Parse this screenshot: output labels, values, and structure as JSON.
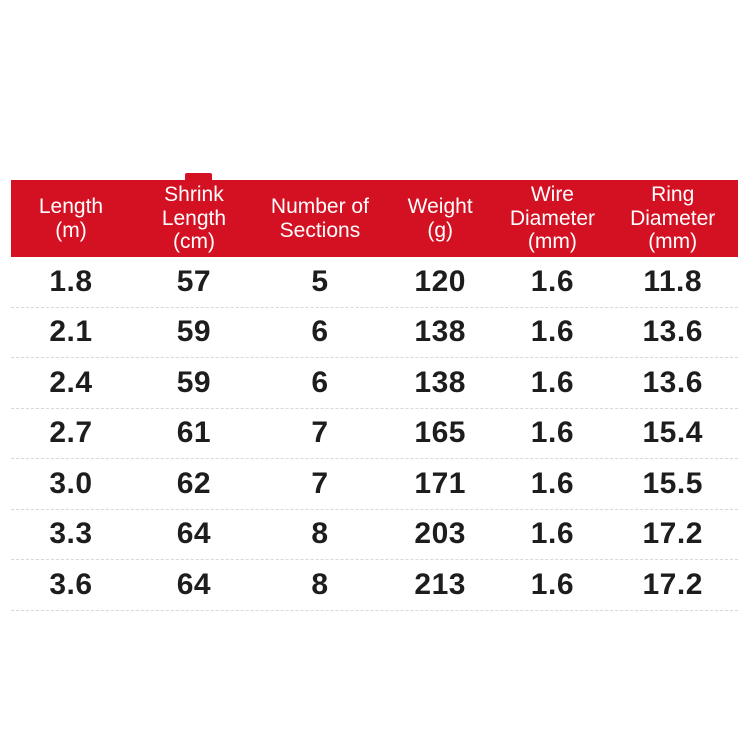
{
  "colors": {
    "header_background": "#d41122",
    "header_text": "#ffffff",
    "row_text": "#1d1d1d",
    "separator": "#d8d8d8",
    "page_background": "#ffffff"
  },
  "table": {
    "columns": [
      {
        "label": "Length\n(m)"
      },
      {
        "label": "Shrink\nLength\n(cm)"
      },
      {
        "label": "Number of\nSections"
      },
      {
        "label": "Weight\n(g)"
      },
      {
        "label": "Wire\nDiameter\n(mm)"
      },
      {
        "label": "Ring\nDiameter\n(mm)"
      }
    ],
    "rows": [
      {
        "cells": [
          "1.8",
          "57",
          "5",
          "120",
          "1.6",
          "11.8"
        ]
      },
      {
        "cells": [
          "2.1",
          "59",
          "6",
          "138",
          "1.6",
          "13.6"
        ]
      },
      {
        "cells": [
          "2.4",
          "59",
          "6",
          "138",
          "1.6",
          "13.6"
        ]
      },
      {
        "cells": [
          "2.7",
          "61",
          "7",
          "165",
          "1.6",
          "15.4"
        ]
      },
      {
        "cells": [
          "3.0",
          "62",
          "7",
          "171",
          "1.6",
          "15.5"
        ]
      },
      {
        "cells": [
          "3.3",
          "64",
          "8",
          "203",
          "1.6",
          "17.2"
        ]
      },
      {
        "cells": [
          "3.6",
          "64",
          "8",
          "213",
          "1.6",
          "17.2"
        ]
      }
    ]
  }
}
